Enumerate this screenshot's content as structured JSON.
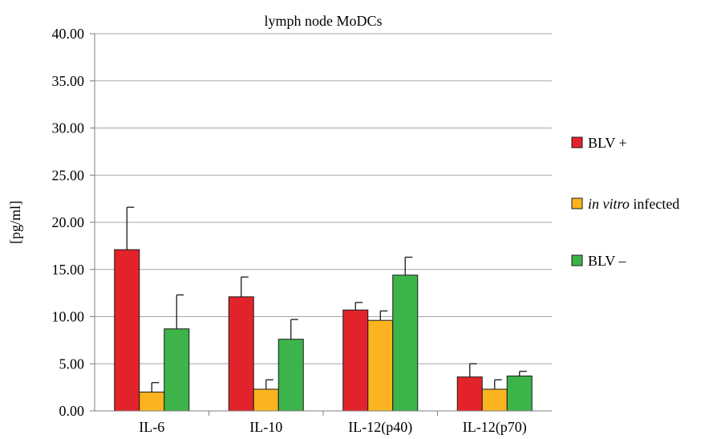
{
  "chart_data": {
    "type": "bar",
    "title": "lymph node  MoDCs",
    "ylabel": "[pg/ml]",
    "xlabel": "",
    "ylim": [
      0,
      40
    ],
    "ytick_step": 5,
    "ytick_labels": [
      "0.00",
      "5.00",
      "10.00",
      "15.00",
      "20.00",
      "25.00",
      "30.00",
      "35.00",
      "40.00"
    ],
    "grid": true,
    "legend_position": "right",
    "categories": [
      "IL-6",
      "IL-10",
      "IL-12(p40)",
      "IL-12(p70)"
    ],
    "series": [
      {
        "name": "BLV +",
        "name_italic": "",
        "name_rest": "BLV +",
        "color": "#e3232b",
        "values": [
          17.1,
          12.1,
          10.7,
          3.6
        ],
        "errors": [
          4.5,
          2.1,
          0.8,
          1.4
        ]
      },
      {
        "name": "in vitro infected",
        "name_italic": "in vitro",
        "name_rest": " infected",
        "color": "#fbb41f",
        "values": [
          2.0,
          2.3,
          9.6,
          2.3
        ],
        "errors": [
          1.0,
          1.0,
          1.0,
          1.0
        ]
      },
      {
        "name": "BLV –",
        "name_italic": "",
        "name_rest": "BLV –",
        "color": "#3cb44a",
        "values": [
          8.7,
          7.6,
          14.4,
          3.7
        ],
        "errors": [
          3.6,
          2.1,
          1.9,
          0.5
        ]
      }
    ]
  }
}
